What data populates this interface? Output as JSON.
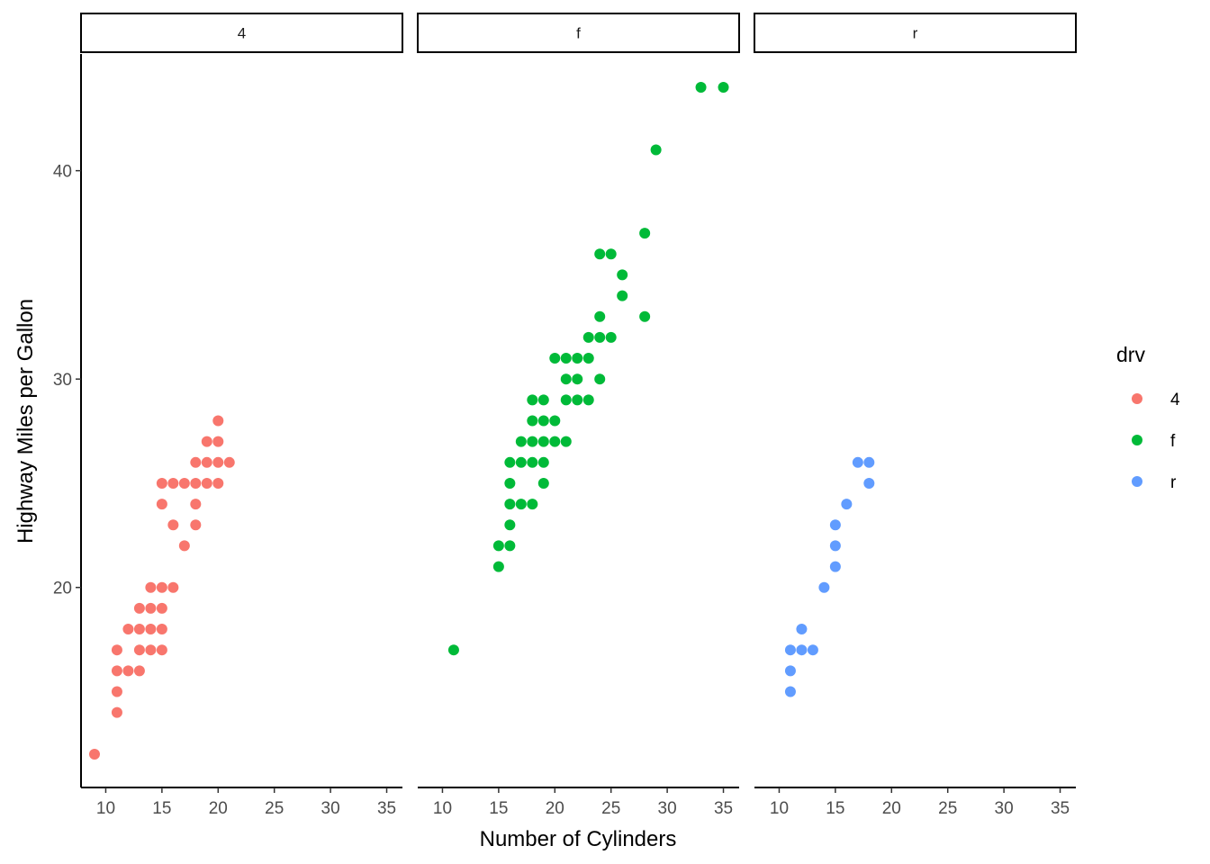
{
  "chart_data": {
    "type": "scatter",
    "xlabel": "Number of Cylinders",
    "ylabel": "Highway Miles per Gallon",
    "xlim": [
      7.8,
      36.4
    ],
    "ylim": [
      10.4,
      45.6
    ],
    "x_ticks": [
      10,
      15,
      20,
      25,
      30,
      35
    ],
    "y_ticks": [
      20,
      30,
      40
    ],
    "legend": {
      "title": "drv",
      "position": "right",
      "entries": [
        {
          "label": "4",
          "color": "#F8766D"
        },
        {
          "label": "f",
          "color": "#00BA38"
        },
        {
          "label": "r",
          "color": "#619CFF"
        }
      ]
    },
    "facets": [
      {
        "label": "4",
        "color": "#F8766D",
        "points": [
          [
            9,
            12
          ],
          [
            11,
            17
          ],
          [
            11,
            16
          ],
          [
            11,
            15
          ],
          [
            11,
            14
          ],
          [
            12,
            18
          ],
          [
            12,
            16
          ],
          [
            13,
            19
          ],
          [
            13,
            18
          ],
          [
            13,
            17
          ],
          [
            13,
            16
          ],
          [
            14,
            20
          ],
          [
            14,
            19
          ],
          [
            14,
            18
          ],
          [
            14,
            17
          ],
          [
            15,
            25
          ],
          [
            15,
            24
          ],
          [
            15,
            20
          ],
          [
            15,
            19
          ],
          [
            15,
            18
          ],
          [
            15,
            17
          ],
          [
            16,
            25
          ],
          [
            16,
            23
          ],
          [
            16,
            20
          ],
          [
            17,
            25
          ],
          [
            17,
            22
          ],
          [
            18,
            26
          ],
          [
            18,
            25
          ],
          [
            18,
            24
          ],
          [
            18,
            23
          ],
          [
            19,
            27
          ],
          [
            19,
            26
          ],
          [
            19,
            25
          ],
          [
            20,
            28
          ],
          [
            20,
            27
          ],
          [
            20,
            26
          ],
          [
            20,
            25
          ],
          [
            21,
            26
          ]
        ]
      },
      {
        "label": "f",
        "color": "#00BA38",
        "points": [
          [
            11,
            17
          ],
          [
            15,
            22
          ],
          [
            15,
            21
          ],
          [
            16,
            26
          ],
          [
            16,
            25
          ],
          [
            16,
            24
          ],
          [
            16,
            23
          ],
          [
            16,
            22
          ],
          [
            17,
            27
          ],
          [
            17,
            26
          ],
          [
            17,
            24
          ],
          [
            18,
            29
          ],
          [
            18,
            28
          ],
          [
            18,
            27
          ],
          [
            18,
            26
          ],
          [
            18,
            24
          ],
          [
            19,
            29
          ],
          [
            19,
            28
          ],
          [
            19,
            27
          ],
          [
            19,
            26
          ],
          [
            19,
            25
          ],
          [
            20,
            31
          ],
          [
            20,
            28
          ],
          [
            20,
            27
          ],
          [
            21,
            31
          ],
          [
            21,
            30
          ],
          [
            21,
            29
          ],
          [
            21,
            27
          ],
          [
            22,
            31
          ],
          [
            22,
            30
          ],
          [
            22,
            29
          ],
          [
            23,
            32
          ],
          [
            23,
            31
          ],
          [
            23,
            29
          ],
          [
            24,
            36
          ],
          [
            24,
            33
          ],
          [
            24,
            32
          ],
          [
            24,
            30
          ],
          [
            25,
            36
          ],
          [
            25,
            32
          ],
          [
            26,
            35
          ],
          [
            26,
            34
          ],
          [
            28,
            37
          ],
          [
            28,
            33
          ],
          [
            29,
            41
          ],
          [
            33,
            44
          ],
          [
            35,
            44
          ]
        ]
      },
      {
        "label": "r",
        "color": "#619CFF",
        "points": [
          [
            11,
            17
          ],
          [
            11,
            16
          ],
          [
            11,
            15
          ],
          [
            12,
            18
          ],
          [
            12,
            17
          ],
          [
            13,
            17
          ],
          [
            14,
            20
          ],
          [
            15,
            23
          ],
          [
            15,
            22
          ],
          [
            15,
            21
          ],
          [
            16,
            24
          ],
          [
            17,
            26
          ],
          [
            18,
            26
          ],
          [
            18,
            25
          ]
        ]
      }
    ]
  }
}
